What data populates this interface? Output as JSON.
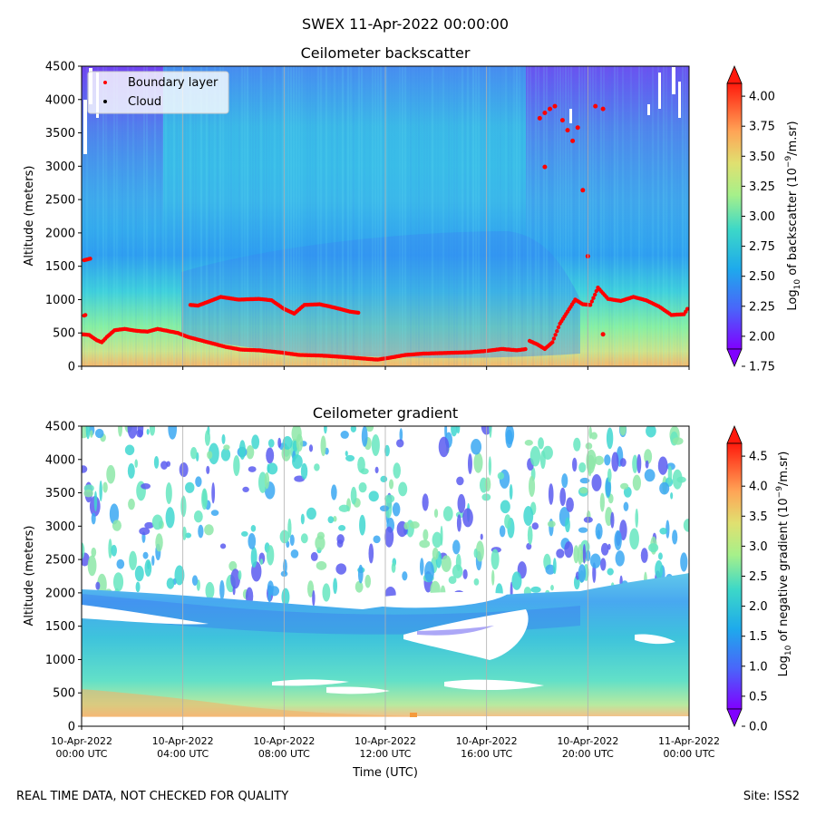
{
  "figure": {
    "suptitle": "SWEX 11-Apr-2022 00:00:00",
    "footer_left": "REAL TIME DATA, NOT CHECKED FOR QUALITY",
    "footer_right": "Site: ISS2",
    "xlabel": "Time (UTC)",
    "time_tick_dates": [
      "10-Apr-2022",
      "10-Apr-2022",
      "10-Apr-2022",
      "10-Apr-2022",
      "10-Apr-2022",
      "10-Apr-2022",
      "11-Apr-2022"
    ],
    "time_tick_times": [
      "00:00 UTC",
      "04:00 UTC",
      "08:00 UTC",
      "12:00 UTC",
      "16:00 UTC",
      "20:00 UTC",
      "00:00 UTC"
    ]
  },
  "chart_data": [
    {
      "type": "heatmap",
      "title": "Ceilometer backscatter",
      "xlabel": "",
      "ylabel": "Altitude (meters)",
      "x_hours": [
        0,
        24
      ],
      "ylim": [
        0,
        4500
      ],
      "yticks": [
        "0",
        "500",
        "1000",
        "1500",
        "2000",
        "2500",
        "3000",
        "3500",
        "4000",
        "4500"
      ],
      "colorbar": {
        "label_prefix": "Log",
        "label_sub": "10",
        "label_rest": " of backscatter (10",
        "label_sup": "−9",
        "label_end": "/m.sr)",
        "range": [
          1.75,
          4.25
        ],
        "ticks": [
          "1.75",
          "2.00",
          "2.25",
          "2.50",
          "2.75",
          "3.00",
          "3.25",
          "3.50",
          "3.75",
          "4.00"
        ]
      },
      "legend": {
        "placement": "upper-left",
        "entries": [
          {
            "label": "Boundary layer",
            "color": "#ff0000"
          },
          {
            "label": "Cloud",
            "color": "#000000"
          }
        ]
      },
      "boundary_layer_low": [
        [
          0.0,
          480
        ],
        [
          0.3,
          470
        ],
        [
          0.6,
          390
        ],
        [
          0.8,
          360
        ],
        [
          1.0,
          440
        ],
        [
          1.3,
          540
        ],
        [
          1.7,
          560
        ],
        [
          2.2,
          530
        ],
        [
          2.6,
          520
        ],
        [
          3.0,
          560
        ],
        [
          3.4,
          530
        ],
        [
          3.8,
          500
        ],
        [
          4.2,
          440
        ],
        [
          4.7,
          390
        ],
        [
          5.2,
          340
        ],
        [
          5.7,
          290
        ],
        [
          6.3,
          250
        ],
        [
          7.0,
          240
        ],
        [
          7.8,
          210
        ],
        [
          8.6,
          170
        ],
        [
          9.5,
          160
        ],
        [
          10.3,
          140
        ],
        [
          11.0,
          120
        ],
        [
          11.7,
          100
        ],
        [
          12.2,
          130
        ],
        [
          12.8,
          170
        ],
        [
          13.5,
          190
        ],
        [
          14.4,
          200
        ],
        [
          15.3,
          210
        ],
        [
          16.0,
          230
        ],
        [
          16.6,
          260
        ],
        [
          17.2,
          240
        ],
        [
          17.6,
          260
        ]
      ],
      "boundary_layer_mid": [
        [
          4.3,
          920
        ],
        [
          4.6,
          910
        ],
        [
          5.5,
          1040
        ],
        [
          6.2,
          1000
        ],
        [
          7.0,
          1010
        ],
        [
          7.5,
          990
        ],
        [
          8.0,
          860
        ],
        [
          8.4,
          790
        ],
        [
          8.8,
          920
        ],
        [
          9.4,
          930
        ],
        [
          10.0,
          880
        ],
        [
          10.6,
          820
        ],
        [
          11.0,
          800
        ]
      ],
      "boundary_layer_upper": [
        [
          0.1,
          760
        ],
        [
          0.2,
          780
        ],
        [
          0.1,
          1590
        ],
        [
          0.4,
          1620
        ]
      ],
      "boundary_layer_late": [
        [
          17.7,
          380
        ],
        [
          18.0,
          330
        ],
        [
          18.3,
          260
        ],
        [
          18.6,
          360
        ],
        [
          18.9,
          640
        ],
        [
          19.2,
          820
        ],
        [
          19.5,
          1000
        ],
        [
          19.8,
          930
        ],
        [
          20.1,
          920
        ],
        [
          20.4,
          1180
        ],
        [
          20.8,
          1010
        ],
        [
          21.3,
          980
        ],
        [
          21.8,
          1040
        ],
        [
          22.3,
          990
        ],
        [
          22.8,
          900
        ],
        [
          23.3,
          770
        ],
        [
          23.8,
          780
        ],
        [
          24.0,
          900
        ]
      ],
      "boundary_layer_high": [
        [
          18.1,
          3720
        ],
        [
          18.3,
          3800
        ],
        [
          18.5,
          3860
        ],
        [
          18.7,
          3900
        ],
        [
          18.3,
          2990
        ],
        [
          19.0,
          3690
        ],
        [
          19.2,
          3540
        ],
        [
          19.4,
          3380
        ],
        [
          19.6,
          3580
        ],
        [
          19.8,
          2640
        ],
        [
          20.3,
          3900
        ],
        [
          20.6,
          3860
        ],
        [
          20.0,
          1650
        ],
        [
          20.6,
          480
        ]
      ]
    },
    {
      "type": "heatmap",
      "title": "Ceilometer gradient",
      "xlabel": "Time (UTC)",
      "ylabel": "Altitude (meters)",
      "x_hours": [
        0,
        24
      ],
      "ylim": [
        0,
        4500
      ],
      "yticks": [
        "0",
        "500",
        "1000",
        "1500",
        "2000",
        "2500",
        "3000",
        "3500",
        "4000",
        "4500"
      ],
      "colorbar": {
        "label_prefix": "Log",
        "label_sub": "10",
        "label_rest": " of negative gradient (10",
        "label_sup": "−9",
        "label_end": "/m.sr)",
        "range": [
          0.0,
          5.0
        ],
        "ticks": [
          "0.0",
          "0.5",
          "1.0",
          "1.5",
          "2.0",
          "2.5",
          "3.0",
          "3.5",
          "4.0",
          "4.5"
        ]
      }
    }
  ],
  "colors": {
    "blue": "#3b79f5",
    "cyan": "#40d7d0",
    "green": "#a8f08a",
    "orange": "#f6b76b",
    "red": "#ff0000",
    "purple": "#8a38f2"
  }
}
